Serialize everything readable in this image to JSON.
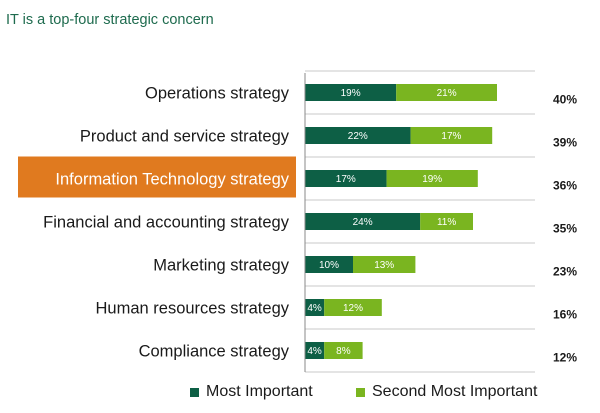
{
  "title": "IT is a top-four strategic concern",
  "colors": {
    "most_important": "#0d5f45",
    "second_most_important": "#7ab520",
    "highlight": "#e07a1f",
    "gridline": "#c8c8c8",
    "axis": "#888888"
  },
  "highlight_category": "Information Technology strategy",
  "legend": [
    {
      "name": "Most Important",
      "color": "#0d5f45"
    },
    {
      "name": "Second Most Important",
      "color": "#7ab520"
    }
  ],
  "chart_data": {
    "type": "bar",
    "orientation": "horizontal",
    "stacked": true,
    "title": "IT is a top-four strategic concern",
    "categories": [
      "Operations strategy",
      "Product and service strategy",
      "Information Technology strategy",
      "Financial and accounting strategy",
      "Marketing strategy",
      "Human resources strategy",
      "Compliance strategy"
    ],
    "series": [
      {
        "name": "Most Important",
        "values": [
          19,
          22,
          17,
          24,
          10,
          4,
          4
        ],
        "labels": [
          "19%",
          "22%",
          "17%",
          "24%",
          "10%",
          "4%",
          "4%"
        ]
      },
      {
        "name": "Second Most Important",
        "values": [
          21,
          17,
          19,
          11,
          13,
          12,
          8
        ],
        "labels": [
          "21%",
          "17%",
          "19%",
          "11%",
          "13%",
          "12%",
          "8%"
        ]
      }
    ],
    "totals": [
      "40%",
      "39%",
      "36%",
      "35%",
      "23%",
      "16%",
      "12%"
    ],
    "xlim": [
      0,
      46
    ],
    "unit": "%",
    "grid": true,
    "legend_position": "bottom"
  }
}
